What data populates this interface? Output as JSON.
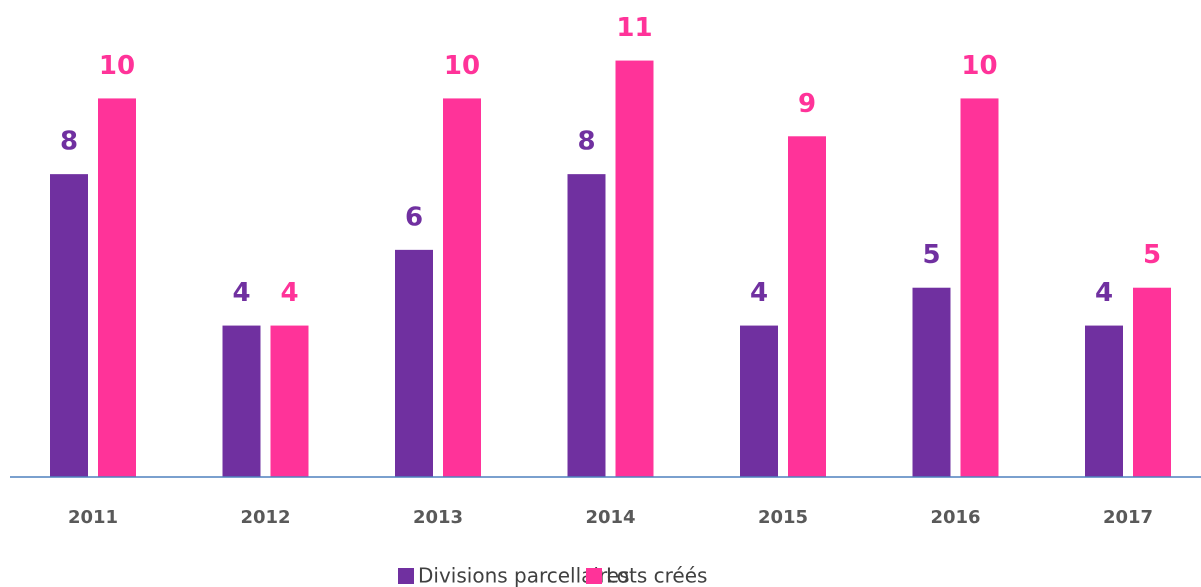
{
  "chart_data": {
    "type": "bar",
    "categories": [
      "2011",
      "2012",
      "2013",
      "2014",
      "2015",
      "2016",
      "2017"
    ],
    "series": [
      {
        "name": "Divisions parcellaires",
        "color": "#7030a0",
        "values": [
          8,
          4,
          6,
          8,
          4,
          5,
          4
        ]
      },
      {
        "name": "Lots créés",
        "color": "#ff3399",
        "values": [
          10,
          4,
          10,
          11,
          9,
          10,
          5
        ]
      }
    ],
    "ylim": [
      0,
      12.6
    ],
    "grid": false,
    "legend": "bottom"
  }
}
